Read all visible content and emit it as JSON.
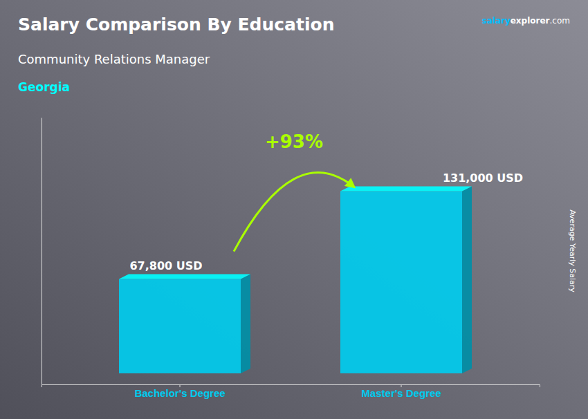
{
  "chart_data": {
    "type": "bar",
    "title": "Salary Comparison By Education",
    "subtitle": "Community Relations Manager",
    "location": "Georgia",
    "website": [
      "salary",
      "explorer",
      ".com"
    ],
    "y_label": "Average Yearly Salary",
    "categories": [
      "Bachelor's Degree",
      "Master's Degree"
    ],
    "values": [
      67800,
      131000
    ],
    "value_labels": [
      "67,800 USD",
      "131,000 USD"
    ],
    "annotation": "+93%",
    "color": "#00CCEE",
    "ylim": [
      -8000,
      184000
    ],
    "data_labels": true,
    "tick_labels": "x",
    "grid": false
  }
}
